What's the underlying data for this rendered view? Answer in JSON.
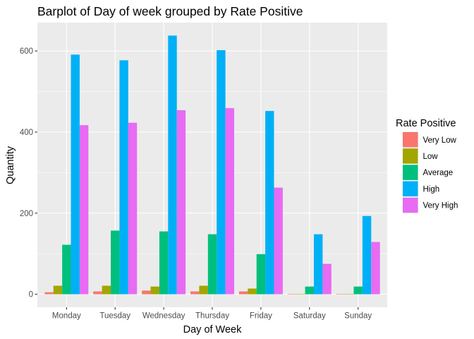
{
  "chart_data": {
    "type": "bar",
    "title": "Barplot of Day of week grouped by Rate Positive",
    "xlabel": "Day of Week",
    "ylabel": "Quantity",
    "categories": [
      "Monday",
      "Tuesday",
      "Wednesday",
      "Thursday",
      "Friday",
      "Saturday",
      "Sunday"
    ],
    "ylim": [
      -32,
      670
    ],
    "yticks": [
      0,
      200,
      400,
      600
    ],
    "ytick_labels": [
      "0",
      "200",
      "400",
      "600"
    ],
    "grid": true,
    "legend": {
      "title": "Rate Positive",
      "position": "right"
    },
    "series": [
      {
        "name": "Very Low",
        "color": "#F8766D",
        "values": [
          5,
          7,
          9,
          7,
          7,
          1,
          1
        ]
      },
      {
        "name": "Low",
        "color": "#A3A500",
        "values": [
          21,
          21,
          19,
          21,
          14,
          1,
          1
        ]
      },
      {
        "name": "Average",
        "color": "#00BF7D",
        "values": [
          122,
          157,
          155,
          148,
          99,
          19,
          19
        ]
      },
      {
        "name": "High",
        "color": "#00B0F6",
        "values": [
          591,
          577,
          638,
          602,
          452,
          148,
          193
        ]
      },
      {
        "name": "Very High",
        "color": "#E76BF3",
        "values": [
          417,
          423,
          454,
          459,
          263,
          75,
          129
        ]
      }
    ]
  },
  "colors": {
    "panel_background": "#EBEBEB",
    "grid_major": "#FFFFFF",
    "tick_text": "#4D4D4D",
    "tick_mark": "#333333"
  }
}
